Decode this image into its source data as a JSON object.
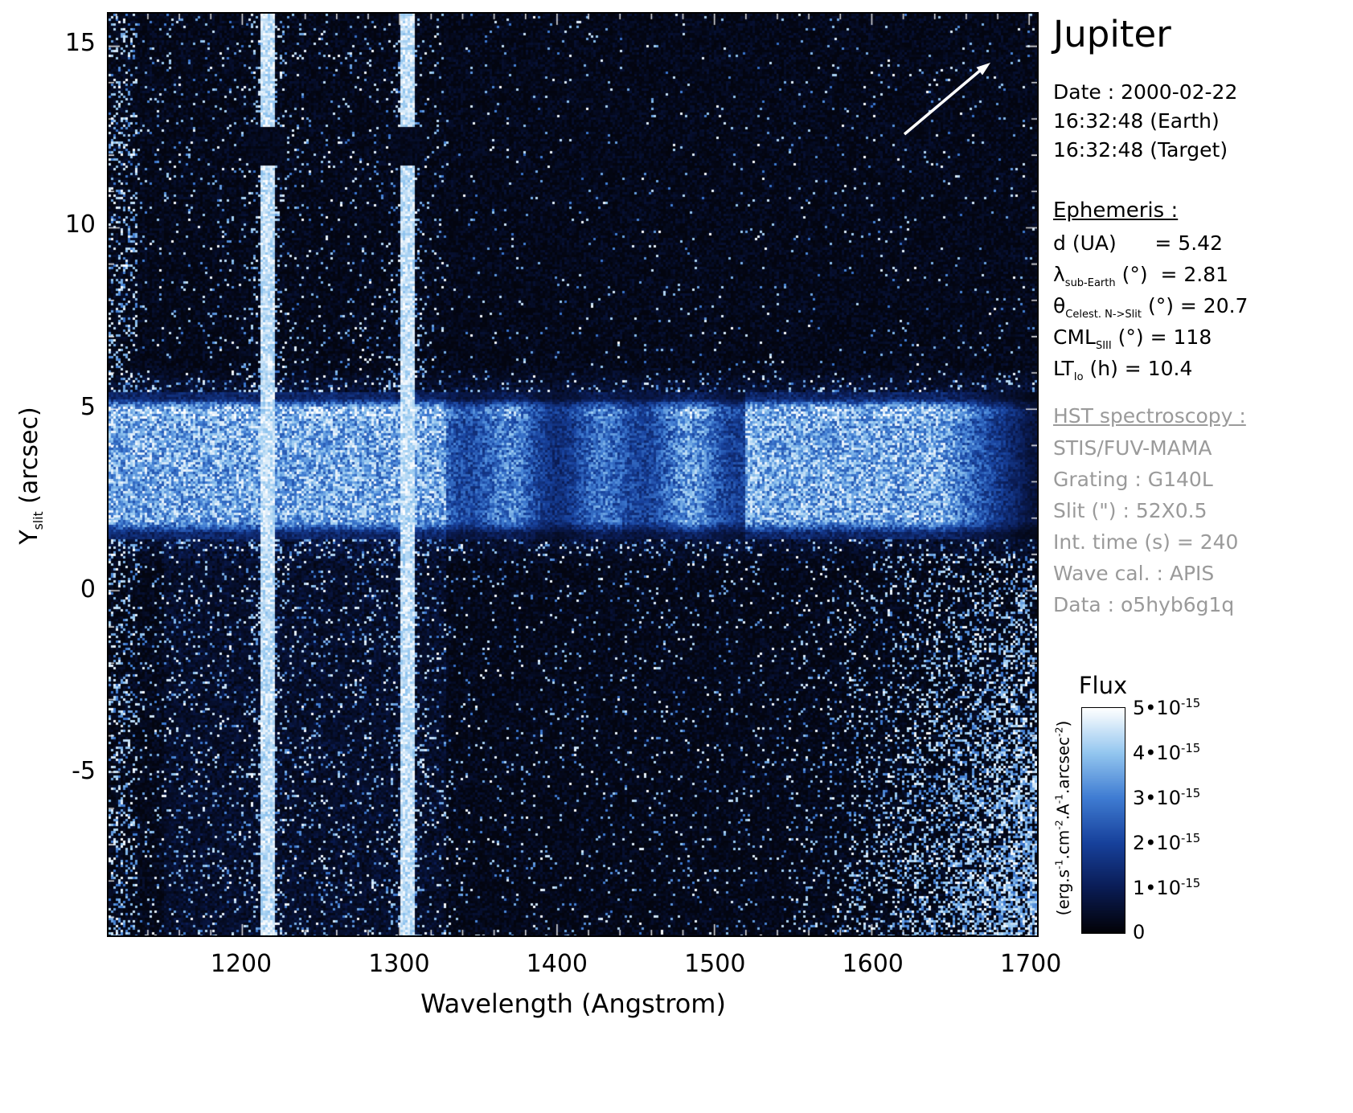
{
  "title": "Jupiter",
  "header": {
    "date_line": "Date : 2000-02-22",
    "earth_time": "16:32:48 (Earth)",
    "target_time": "16:32:48 (Target)"
  },
  "ephemeris": {
    "heading": "Ephemeris :",
    "rows": [
      {
        "pre": "d (UA)",
        "sub": "",
        "post": "      = 5.42"
      },
      {
        "pre": "λ",
        "sub": "sub-Earth",
        "post": " (°)  = 2.81"
      },
      {
        "pre": "θ",
        "sub": "Celest. N->Slit",
        "post": " (°) = 20.7"
      },
      {
        "pre": "CML",
        "sub": "SIII",
        "post": " (°) = 118"
      },
      {
        "pre": "LT",
        "sub": "Io",
        "post": " (h) = 10.4"
      }
    ]
  },
  "hst": {
    "heading": "HST spectroscopy :",
    "rows": [
      "STIS/FUV-MAMA",
      "Grating : G140L",
      "Slit (\") : 52X0.5",
      "Int. time (s) = 240",
      "Wave cal. : APIS",
      "Data : o5hyb6g1q"
    ]
  },
  "colors": {
    "text": "#000000",
    "hst_text": "#9a9a9a",
    "plot_border": "#000000",
    "background": "#ffffff",
    "arrow": "#ffffff"
  },
  "chart_data": {
    "type": "heatmap",
    "title": "Jupiter",
    "xlabel": "Wavelength (Angstrom)",
    "ylabel_pre": "Y",
    "ylabel_sub": "slit",
    "ylabel_post": " (arcsec)",
    "xlim": [
      1115,
      1705
    ],
    "ylim": [
      -9.5,
      15.9
    ],
    "x_ticks": [
      1200,
      1300,
      1400,
      1500,
      1600,
      1700
    ],
    "y_ticks": [
      -5,
      0,
      5,
      10,
      15
    ],
    "grid": false,
    "legend_position": "colorbar-right",
    "colormap_stops": [
      {
        "t": 0.0,
        "color": "#020207"
      },
      {
        "t": 0.2,
        "color": "#0a1c55"
      },
      {
        "t": 0.4,
        "color": "#17419c"
      },
      {
        "t": 0.6,
        "color": "#3f7cd2"
      },
      {
        "t": 0.8,
        "color": "#93c6ef"
      },
      {
        "t": 1.0,
        "color": "#ffffff"
      }
    ],
    "colorbar": {
      "title": "Flux",
      "min": 0,
      "max": 5e-15,
      "ticks": [
        {
          "mant": "5•10",
          "exp": "-15",
          "value": 5e-15
        },
        {
          "mant": "4•10",
          "exp": "-15",
          "value": 4e-15
        },
        {
          "mant": "3•10",
          "exp": "-15",
          "value": 3e-15
        },
        {
          "mant": "2•10",
          "exp": "-15",
          "value": 2e-15
        },
        {
          "mant": "1•10",
          "exp": "-15",
          "value": 1e-15
        },
        {
          "mant": "0",
          "exp": "",
          "value": 0
        }
      ],
      "unit_segments": [
        {
          "t": "(erg.s",
          "sup": "-1"
        },
        {
          "t": ".cm",
          "sup": "-2"
        },
        {
          "t": ".A",
          "sup": "-1"
        },
        {
          "t": ".arcsec",
          "sup": "-2"
        },
        {
          "t": ")",
          "sup": ""
        }
      ]
    },
    "features": {
      "emission_line_wavelengths": [
        1216,
        1305
      ],
      "emission_line_half_widths": [
        4.5,
        4.0
      ],
      "disk_band_y_range": [
        1.4,
        5.45
      ],
      "band_bright_wavelength_ranges": [
        [
          1115,
          1330
        ],
        [
          1520,
          1645
        ]
      ],
      "dark_detector_blotch_y_range": [
        11.7,
        12.75
      ],
      "bright_longwave_region": {
        "wavelength_min": 1540,
        "y_max": 1.0
      },
      "left_edge_speckle_max_wavelength": 1133
    }
  }
}
